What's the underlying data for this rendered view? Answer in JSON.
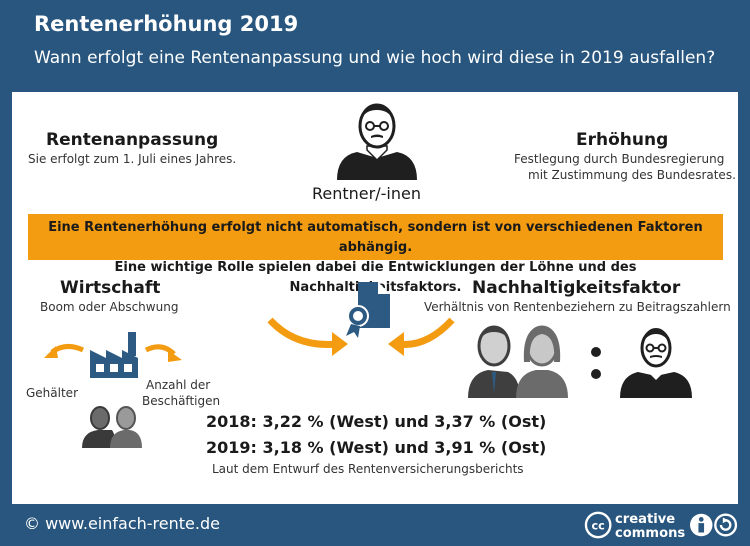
{
  "header": {
    "title": "Rentenerhöhung 2019",
    "subtitle": "Wann erfolgt eine Rentenanpassung und wie hoch wird diese in 2019 ausfallen?"
  },
  "left_top": {
    "heading": "Rentenanpassung",
    "text": "Sie erfolgt zum 1. Juli eines Jahres."
  },
  "center_top": {
    "label": "Rentner/-inen"
  },
  "right_top": {
    "heading": "Erhöhung",
    "line1": "Festlegung durch Bundesregierung",
    "line2": "mit Zustimmung des Bundesrates."
  },
  "banner": {
    "line1": "Eine Rentenerhöhung erfolgt nicht automatisch, sondern ist von verschiedenen Faktoren abhängig.",
    "line2": "Eine wichtige Rolle spielen dabei die Entwicklungen der Löhne und des Nachhaltigkeitsfaktors."
  },
  "wirtschaft": {
    "heading": "Wirtschaft",
    "text": "Boom oder Abschwung",
    "left_label": "Gehälter",
    "right_label_1": "Anzahl der",
    "right_label_2": "Beschäftigen"
  },
  "nachhaltigkeit": {
    "heading": "Nachhaltigkeitsfaktor",
    "text": "Verhältnis von Rentenbeziehern zu Beitragszahlern"
  },
  "results": {
    "line2018": "2018: 3,22 % (West) und 3,37 % (Ost)",
    "line2019": "2019: 3,18 % (West) und 3,91 % (Ost)",
    "note": "Laut dem Entwurf des Rentenversicherungsberichts"
  },
  "footer": {
    "site": "© www.einfach-rente.de",
    "cc_top": "creative",
    "cc_bottom": "commons",
    "cc_badge": "cc"
  },
  "colors": {
    "header": "#28567e",
    "accent": "#f39c12",
    "icon_blue": "#2d5a82",
    "dark": "#1f1f1f"
  }
}
